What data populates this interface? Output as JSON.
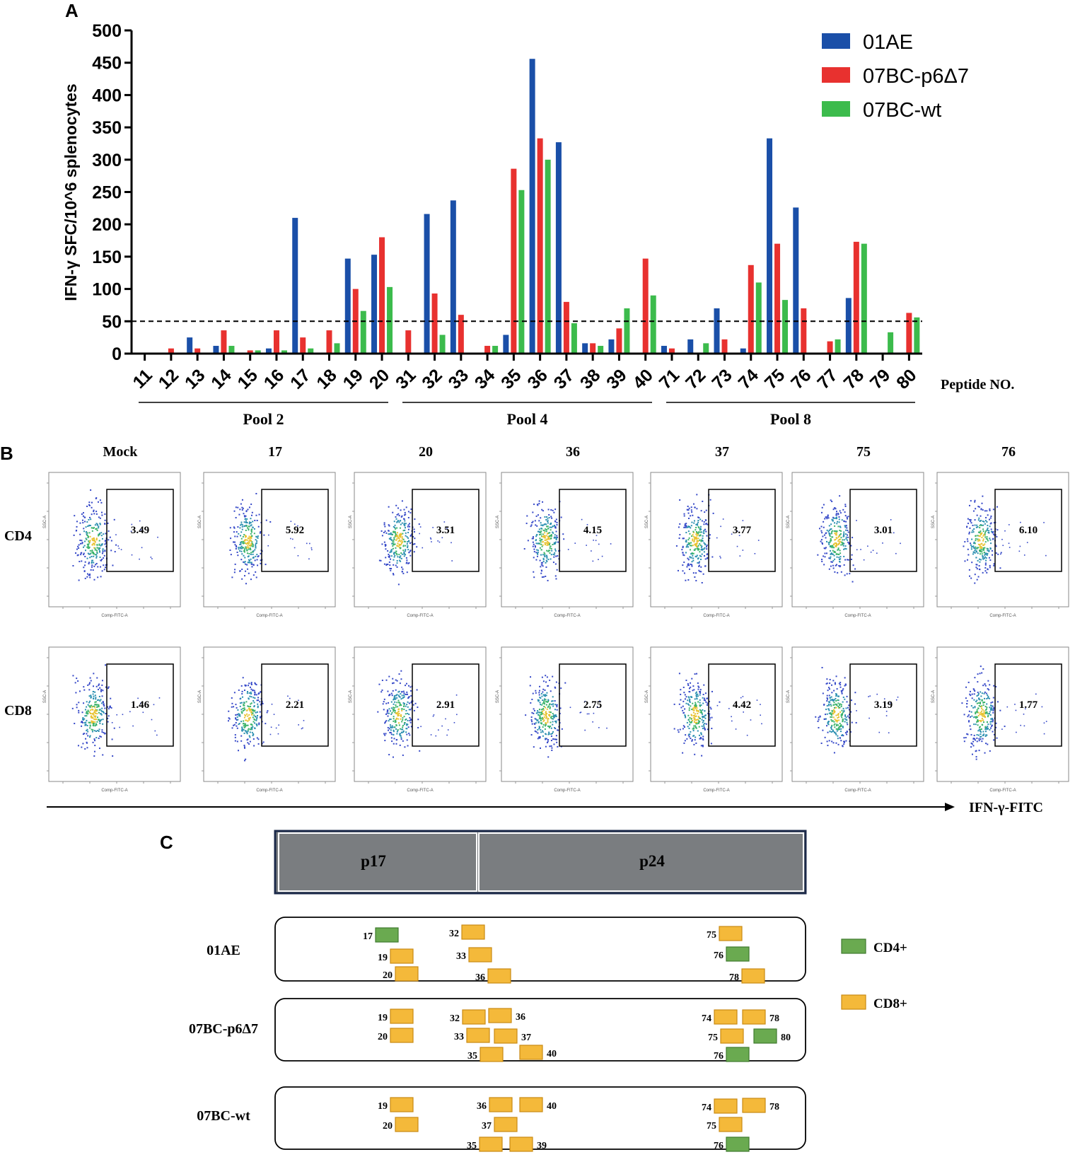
{
  "panel_labels": {
    "a": "A",
    "b": "B",
    "c": "C"
  },
  "chart_data": {
    "type": "bar",
    "ylabel": "IFN-γ SFC/10^6 splenocytes",
    "xlabel": "Peptide NO.",
    "ylim": [
      0,
      500
    ],
    "yticks": [
      "0",
      "50",
      "100",
      "150",
      "200",
      "250",
      "300",
      "350",
      "400",
      "450",
      "500"
    ],
    "threshold": 50,
    "categories": [
      "11",
      "12",
      "13",
      "14",
      "15",
      "16",
      "17",
      "18",
      "19",
      "20",
      "31",
      "32",
      "33",
      "34",
      "35",
      "36",
      "37",
      "38",
      "39",
      "40",
      "71",
      "72",
      "73",
      "74",
      "75",
      "76",
      "77",
      "78",
      "79",
      "80"
    ],
    "series": [
      {
        "name": "01AE",
        "color": "#1a4fa8",
        "values": [
          0,
          0,
          25,
          12,
          0,
          8,
          210,
          0,
          147,
          153,
          0,
          216,
          237,
          0,
          29,
          456,
          327,
          16,
          22,
          0,
          12,
          22,
          70,
          8,
          333,
          226,
          0,
          86,
          0,
          0
        ]
      },
      {
        "name": "07BC-p6Δ7",
        "color": "#e8312f",
        "values": [
          0,
          8,
          8,
          36,
          5,
          36,
          25,
          36,
          100,
          180,
          36,
          93,
          60,
          12,
          286,
          333,
          80,
          16,
          39,
          147,
          8,
          0,
          22,
          137,
          170,
          70,
          19,
          173,
          0,
          63
        ]
      },
      {
        "name": "07BC-wt",
        "color": "#3cbb4c",
        "values": [
          0,
          0,
          0,
          12,
          5,
          5,
          8,
          16,
          66,
          103,
          0,
          29,
          0,
          12,
          253,
          300,
          47,
          12,
          70,
          90,
          0,
          16,
          0,
          110,
          83,
          0,
          22,
          170,
          33,
          56
        ]
      }
    ],
    "pools": [
      "Pool 2",
      "Pool 4",
      "Pool 8"
    ]
  },
  "flow": {
    "columns": [
      "Mock",
      "17",
      "20",
      "36",
      "37",
      "75",
      "76"
    ],
    "rows": [
      {
        "label": "CD4",
        "values": [
          "3.49",
          "5.92",
          "3.51",
          "4.15",
          "3.77",
          "3.01",
          "6.10"
        ]
      },
      {
        "label": "CD8",
        "values": [
          "1.46",
          "2.21",
          "2.91",
          "2.75",
          "4.42",
          "3.19",
          "1.77"
        ]
      }
    ],
    "axis_label": "IFN-γ-FITC",
    "x_axis_small": "Comp-FITC-A",
    "y_axis_small": "SSC-A"
  },
  "map": {
    "segments": [
      "p17",
      "p24"
    ],
    "strains": [
      {
        "name": "01AE",
        "items": [
          {
            "n": "17",
            "type": "CD4",
            "side": "left"
          },
          {
            "n": "19",
            "type": "CD8",
            "side": "left"
          },
          {
            "n": "20",
            "type": "CD8",
            "side": "left"
          },
          {
            "n": "32",
            "type": "CD8",
            "side": "left"
          },
          {
            "n": "33",
            "type": "CD8",
            "side": "left"
          },
          {
            "n": "36",
            "type": "CD8",
            "side": "left"
          },
          {
            "n": "75",
            "type": "CD8",
            "side": "left"
          },
          {
            "n": "76",
            "type": "CD4",
            "side": "left"
          },
          {
            "n": "78",
            "type": "CD8",
            "side": "left"
          }
        ]
      },
      {
        "name": "07BC-p6Δ7",
        "items": [
          {
            "n": "19",
            "type": "CD8",
            "side": "left"
          },
          {
            "n": "20",
            "type": "CD8",
            "side": "left"
          },
          {
            "n": "32",
            "type": "CD8",
            "side": "left"
          },
          {
            "n": "36",
            "type": "CD8",
            "side": "right"
          },
          {
            "n": "33",
            "type": "CD8",
            "side": "left"
          },
          {
            "n": "37",
            "type": "CD8",
            "side": "right"
          },
          {
            "n": "35",
            "type": "CD8",
            "side": "left"
          },
          {
            "n": "40",
            "type": "CD8",
            "side": "right"
          },
          {
            "n": "74",
            "type": "CD8",
            "side": "left"
          },
          {
            "n": "78",
            "type": "CD8",
            "side": "right"
          },
          {
            "n": "75",
            "type": "CD8",
            "side": "left"
          },
          {
            "n": "80",
            "type": "CD4",
            "side": "right"
          },
          {
            "n": "76",
            "type": "CD4",
            "side": "left"
          }
        ]
      },
      {
        "name": "07BC-wt",
        "items": [
          {
            "n": "19",
            "type": "CD8",
            "side": "left"
          },
          {
            "n": "20",
            "type": "CD8",
            "side": "left"
          },
          {
            "n": "36",
            "type": "CD8",
            "side": "left"
          },
          {
            "n": "40",
            "type": "CD8",
            "side": "right"
          },
          {
            "n": "37",
            "type": "CD8",
            "side": "left"
          },
          {
            "n": "35",
            "type": "CD8",
            "side": "left"
          },
          {
            "n": "39",
            "type": "CD8",
            "side": "right"
          },
          {
            "n": "74",
            "type": "CD8",
            "side": "left"
          },
          {
            "n": "78",
            "type": "CD8",
            "side": "right"
          },
          {
            "n": "75",
            "type": "CD8",
            "side": "left"
          },
          {
            "n": "76",
            "type": "CD4",
            "side": "left"
          }
        ]
      }
    ],
    "legend": [
      {
        "label": "CD4+",
        "color": "#6aaa50"
      },
      {
        "label": "CD8+",
        "color": "#f4b93a"
      }
    ]
  }
}
